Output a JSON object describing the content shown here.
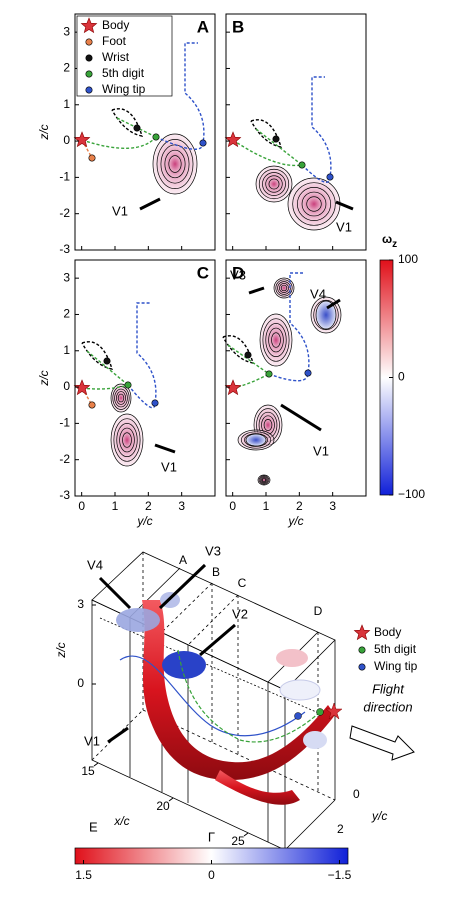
{
  "panels": [
    {
      "letter": "A",
      "annotations": [
        "V1"
      ]
    },
    {
      "letter": "B",
      "annotations": [
        "V1"
      ]
    },
    {
      "letter": "C",
      "annotations": [
        "V1"
      ]
    },
    {
      "letter": "D",
      "annotations": [
        "V3",
        "V4",
        "V1"
      ]
    }
  ],
  "axes": {
    "xlabel": "y/c",
    "ylabel": "z/c",
    "xlim": [
      -0.2,
      4
    ],
    "ylim": [
      -3,
      3.5
    ],
    "xticks": [
      0,
      1,
      2,
      3
    ],
    "yticks": [
      -3,
      -2,
      -1,
      0,
      1,
      2,
      3
    ]
  },
  "legend": [
    {
      "name": "Body",
      "color": "#d9343b"
    },
    {
      "name": "Foot",
      "color": "#e8804a"
    },
    {
      "name": "Wrist",
      "color": "#111111"
    },
    {
      "name": "5th digit",
      "color": "#39a33a"
    },
    {
      "name": "Wing tip",
      "color": "#2f52c9"
    }
  ],
  "colorbar": {
    "symbol": "ω",
    "subscript": "z",
    "lim": [
      -100,
      100
    ],
    "ticks": [
      100,
      0,
      {
        "value": -100,
        "label": "−100"
      }
    ]
  },
  "panel_e": {
    "letter": "E",
    "annotations": [
      "V4",
      "V3",
      "V2",
      "V1"
    ],
    "sections": [
      "A",
      "B",
      "C",
      "D"
    ],
    "xlabel": "x/c",
    "ylabel": "y/c",
    "zlabel": "z/c",
    "xlim": [
      15,
      25
    ],
    "xticks": [
      15,
      20,
      25
    ],
    "ylim": [
      0,
      2
    ],
    "yticks": [
      0,
      2
    ],
    "zlim": [
      0,
      3
    ],
    "zticks": [
      3,
      0
    ],
    "legend": [
      {
        "name": "Body",
        "color": "#d9343b"
      },
      {
        "name": "5th digit",
        "color": "#39a33a"
      },
      {
        "name": "Wing tip",
        "color": "#2f52c9"
      }
    ],
    "arrow_label": [
      "Flight",
      "direction"
    ],
    "colorbar": {
      "symbol": "Γ",
      "lim": [
        1.6,
        -1.6
      ],
      "ticks": [
        1.5,
        0,
        {
          "value": -1.5,
          "label": "−1.5"
        }
      ]
    }
  }
}
